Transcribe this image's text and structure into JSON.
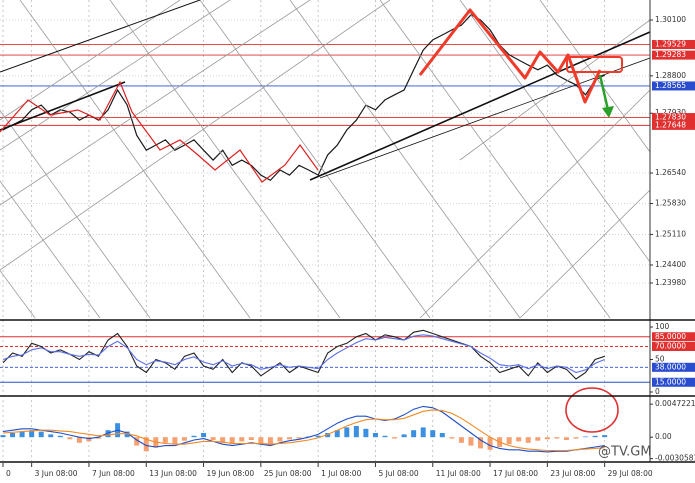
{
  "chart_data": [
    {
      "type": "line",
      "color": "#1a1a1a",
      "categories": [
        "0",
        null,
        null,
        "3 Jun 08:00",
        null,
        null,
        null,
        null,
        null,
        "7 Jun 08:00",
        null,
        null,
        null,
        null,
        null,
        "13 Jun 08:00",
        null,
        null,
        null,
        null,
        null,
        "19 Jun 08:00",
        null,
        null,
        null,
        null,
        null,
        "25 Jun 08:00",
        null,
        null,
        null,
        null,
        null,
        "1 Jul 08:00",
        null,
        null,
        null,
        null,
        null,
        "5 Jul 08:00",
        null,
        null,
        null,
        null,
        null,
        "11 Jul 08:00",
        null,
        null,
        null,
        null,
        null,
        "17 Jul 08:00",
        null,
        null,
        null,
        null,
        null,
        "23 Jul 08:00",
        null,
        null,
        null,
        null,
        null,
        "29 Jul 08:00"
      ],
      "values": [
        1.2754,
        1.2766,
        1.2777,
        1.2801,
        1.2812,
        1.2789,
        1.2801,
        1.2796,
        1.2777,
        1.2789,
        1.2777,
        1.2801,
        1.2847,
        1.2812,
        1.2742,
        1.2707,
        1.2719,
        1.2731,
        1.2707,
        1.2719,
        1.2731,
        1.2707,
        1.2684,
        1.2707,
        1.2672,
        1.2684,
        1.2672,
        1.2649,
        1.2637,
        1.2661,
        1.2649,
        1.2672,
        1.2661,
        1.2649,
        1.2696,
        1.2719,
        1.2754,
        1.2777,
        1.2812,
        1.2801,
        1.2824,
        1.2836,
        1.2847,
        1.2894,
        1.294,
        1.2964,
        1.2975,
        1.2987,
        1.2998,
        1.3022,
        1.301,
        1.2987,
        1.2952,
        1.2929,
        1.2917,
        1.2905,
        1.2894,
        1.2905,
        1.2882,
        1.287,
        1.2859,
        1.2836,
        1.287,
        1.2882
      ],
      "ylim": [
        1.23166,
        1.30565
      ],
      "yticks": [
        {
          "value": 1.301,
          "label": "1.30100"
        },
        {
          "value": 1.288,
          "label": "1.28800"
        },
        {
          "value": 1.2793,
          "label": "1.27930"
        },
        {
          "value": 1.2654,
          "label": "1.26540"
        },
        {
          "value": 1.2583,
          "label": "1.25830"
        },
        {
          "value": 1.2511,
          "label": "1.25110"
        },
        {
          "value": 1.244,
          "label": "1.24400"
        },
        {
          "value": 1.2398,
          "label": "1.23980"
        }
      ],
      "levels": [
        {
          "value": 1.29529,
          "label": "1.29529",
          "color": "#e03030"
        },
        {
          "value": 1.29283,
          "label": "1.29283",
          "color": "#e03030"
        },
        {
          "value": 1.28565,
          "label": "1.28565",
          "color": "#2a4dd0"
        },
        {
          "value": 1.2783,
          "label": "1.27830",
          "color": "#e03030"
        },
        {
          "value": 1.27648,
          "label": "1.27648",
          "color": "#e03030"
        }
      ],
      "grid": true
    },
    {
      "type": "line",
      "series": [
        {
          "color": "#222222",
          "values": [
            45,
            60,
            55,
            75,
            70,
            60,
            65,
            58,
            50,
            62,
            55,
            80,
            90,
            70,
            40,
            30,
            50,
            45,
            35,
            55,
            60,
            40,
            35,
            50,
            30,
            45,
            40,
            25,
            35,
            45,
            30,
            40,
            35,
            30,
            60,
            70,
            75,
            85,
            90,
            80,
            88,
            85,
            80,
            92,
            95,
            90,
            85,
            80,
            75,
            70,
            55,
            45,
            30,
            35,
            40,
            25,
            45,
            30,
            40,
            35,
            20,
            30,
            50,
            55
          ]
        },
        {
          "color": "#5a6ee8",
          "values": [
            50,
            55,
            57,
            65,
            68,
            62,
            62,
            58,
            55,
            58,
            57,
            70,
            78,
            68,
            50,
            42,
            48,
            46,
            42,
            50,
            54,
            46,
            42,
            48,
            40,
            44,
            42,
            35,
            38,
            42,
            38,
            40,
            38,
            36,
            50,
            60,
            68,
            76,
            82,
            80,
            84,
            82,
            80,
            86,
            88,
            86,
            82,
            78,
            74,
            70,
            60,
            52,
            42,
            40,
            42,
            36,
            42,
            36,
            40,
            38,
            30,
            34,
            44,
            50
          ]
        }
      ],
      "ylim": [
        -4.6,
        107.7
      ],
      "yticks": [
        100,
        50,
        0
      ],
      "levels": [
        {
          "value": 85,
          "label": "85.0000",
          "color": "#e03030",
          "dashed": false
        },
        {
          "value": 70,
          "label": "70.0000",
          "color": "#e03030",
          "dashed": true
        },
        {
          "value": 38,
          "label": "38.0000",
          "color": "#2a4dd0",
          "dashed": true
        },
        {
          "value": 15,
          "label": "15.0000",
          "color": "#2a4dd0",
          "dashed": false
        }
      ]
    },
    {
      "type": "bar",
      "colors": {
        "positive": "#3b8fe0",
        "negative": "#f5a070"
      },
      "values": [
        0.0003,
        0.0006,
        0.0008,
        0.001,
        0.0008,
        0.0004,
        0.0002,
        -0.0003,
        -0.0008,
        -0.0006,
        -0.0002,
        0.001,
        0.002,
        0.0008,
        -0.0012,
        -0.002,
        -0.0015,
        -0.0008,
        -0.001,
        -0.0005,
        0.0002,
        0.0006,
        -0.0004,
        -0.0008,
        -0.001,
        -0.0006,
        -0.0004,
        -0.0009,
        -0.0012,
        -0.0006,
        -0.0003,
        -0.0002,
        0.0001,
        0.0002,
        0.0006,
        0.001,
        0.0014,
        0.0016,
        0.0012,
        0.0006,
        0.0002,
        -0.0002,
        0.0004,
        0.001,
        0.0014,
        0.001,
        0.0006,
        -0.0002,
        -0.0008,
        -0.0012,
        -0.0016,
        -0.0018,
        -0.0014,
        -0.001,
        -0.0006,
        -0.0008,
        -0.0005,
        -0.0003,
        -0.0002,
        -0.0004,
        -0.0002,
        0.0001,
        0.0002,
        0.0003
      ],
      "series": [
        {
          "color": "#1f4fc8",
          "values": [
            0.0008,
            0.001,
            0.0012,
            0.0012,
            0.001,
            0.0008,
            0.0006,
            0.0003,
            0,
            -0.0002,
            0,
            0.0006,
            0.001,
            0.0006,
            -0.0004,
            -0.0012,
            -0.0014,
            -0.0012,
            -0.0012,
            -0.0008,
            -0.0004,
            -0.0002,
            -0.0006,
            -0.001,
            -0.0012,
            -0.001,
            -0.0008,
            -0.001,
            -0.0012,
            -0.0008,
            -0.0005,
            -0.0003,
            0,
            0.0004,
            0.0012,
            0.002,
            0.0026,
            0.003,
            0.003,
            0.0026,
            0.0024,
            0.0026,
            0.0032,
            0.004,
            0.0044,
            0.0042,
            0.0036,
            0.0026,
            0.0016,
            0.0006,
            -0.0004,
            -0.0012,
            -0.0016,
            -0.0018,
            -0.0018,
            -0.002,
            -0.002,
            -0.0021,
            -0.002,
            -0.002,
            -0.0018,
            -0.0016,
            -0.0014,
            -0.0012
          ]
        },
        {
          "color": "#f08a24",
          "values": [
            0.0006,
            0.0007,
            0.0008,
            0.0009,
            0.001,
            0.001,
            0.0009,
            0.0008,
            0.0006,
            0.0004,
            0.0002,
            0.0003,
            0.0005,
            0.0005,
            0.0002,
            -0.0003,
            -0.0007,
            -0.0009,
            -0.001,
            -0.001,
            -0.0008,
            -0.0006,
            -0.0006,
            -0.0007,
            -0.0009,
            -0.0009,
            -0.0009,
            -0.0009,
            -0.001,
            -0.0009,
            -0.0008,
            -0.0006,
            -0.0004,
            -0.0001,
            0.0004,
            0.001,
            0.0016,
            0.0021,
            0.0025,
            0.0026,
            0.0025,
            0.0025,
            0.0027,
            0.0032,
            0.0037,
            0.0039,
            0.0038,
            0.0034,
            0.0027,
            0.0018,
            0.0009,
            0,
            -0.0007,
            -0.0012,
            -0.0015,
            -0.0017,
            -0.0018,
            -0.0019,
            -0.0019,
            -0.0019,
            -0.0018,
            -0.0017,
            -0.0016,
            -0.0015
          ]
        }
      ],
      "ylim": [
        -0.0034,
        0.0056
      ],
      "yticks": [
        {
          "value": 0.0047221,
          "label": "0.0047221"
        },
        {
          "value": 0,
          "label": "0.00"
        },
        -0.0030581
      ],
      "watermark": "@TV.GM"
    }
  ]
}
